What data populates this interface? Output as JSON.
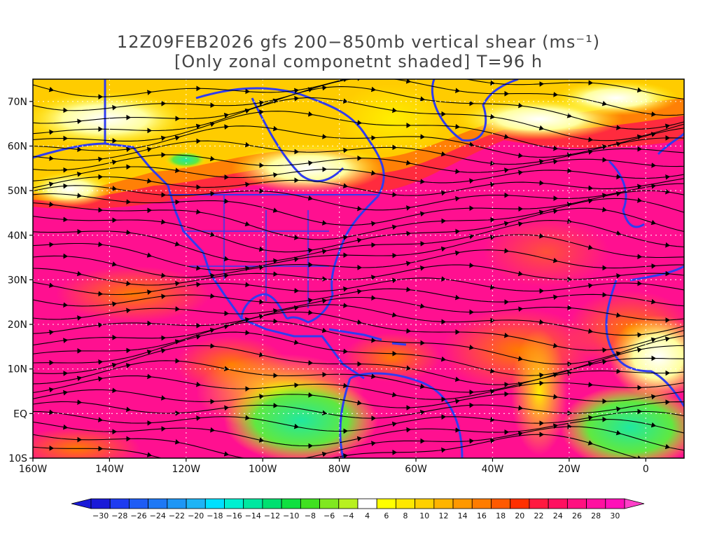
{
  "title": {
    "line1": "12Z09FEB2026 gfs 200−850mb vertical shear (ms⁻¹)",
    "line2": "[Only zonal componetnt shaded] T=96 h"
  },
  "map": {
    "lat_labels": [
      "70N",
      "60N",
      "50N",
      "40N",
      "30N",
      "20N",
      "10N",
      "EQ",
      "10S"
    ],
    "lat_values": [
      70,
      60,
      50,
      40,
      30,
      20,
      10,
      0,
      -10
    ],
    "lon_labels": [
      "160W",
      "140W",
      "120W",
      "100W",
      "80W",
      "60W",
      "40W",
      "20W",
      "0"
    ],
    "lon_values": [
      -160,
      -140,
      -120,
      -100,
      -80,
      -60,
      -40,
      -20,
      0
    ],
    "lon_range": [
      -160,
      10
    ],
    "lat_range": [
      -10,
      75
    ],
    "coastline_color": "#2f3cf0",
    "streamline_color": "#000000"
  },
  "colorbar": {
    "labels": [
      "-30",
      "-28",
      "-26",
      "-24",
      "-22",
      "-20",
      "-18",
      "-16",
      "-14",
      "-12",
      "-10",
      "-8",
      "-6",
      "-4",
      "4",
      "6",
      "8",
      "10",
      "12",
      "14",
      "16",
      "18",
      "20",
      "22",
      "24",
      "26",
      "28",
      "30"
    ],
    "colors": [
      "#1a1ad8",
      "#1e3cf0",
      "#1e5cf5",
      "#1e78f5",
      "#1e96f5",
      "#1eb4f5",
      "#00e0ff",
      "#00f0d0",
      "#00e8a0",
      "#00e070",
      "#10e040",
      "#40e020",
      "#80e820",
      "#b8f020",
      "#ffffff",
      "#ffff00",
      "#ffe800",
      "#ffd000",
      "#ffb400",
      "#ff9800",
      "#ff7c00",
      "#ff5a00",
      "#ff3000",
      "#ff1a40",
      "#ff1060",
      "#ff1080",
      "#ff10a0",
      "#ff10b8"
    ],
    "left_arrow_color": "#1a1ad8",
    "right_arrow_color": "#ff40c8"
  }
}
